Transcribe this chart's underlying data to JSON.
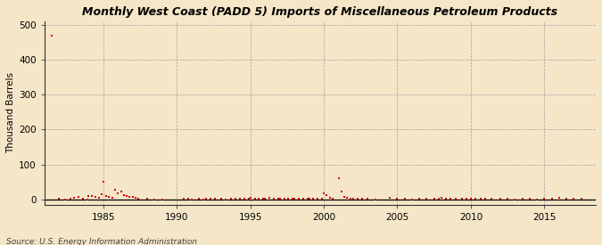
{
  "title": "Monthly West Coast (PADD 5) Imports of Miscellaneous Petroleum Products",
  "ylabel": "Thousand Barrels",
  "source": "Source: U.S. Energy Information Administration",
  "background_color": "#f5e6c8",
  "plot_bg_color": "#f5e6c8",
  "marker_color": "#cc0000",
  "marker_size": 4,
  "xlim": [
    1981.0,
    2018.5
  ],
  "ylim": [
    -15,
    510
  ],
  "yticks": [
    0,
    100,
    200,
    300,
    400,
    500
  ],
  "xticks": [
    1985,
    1990,
    1995,
    2000,
    2005,
    2010,
    2015
  ],
  "data_points": [
    [
      1981.5,
      470
    ],
    [
      1982.0,
      2
    ],
    [
      1982.4,
      1
    ],
    [
      1982.8,
      3
    ],
    [
      1983.0,
      4
    ],
    [
      1983.3,
      7
    ],
    [
      1983.6,
      2
    ],
    [
      1983.9,
      1
    ],
    [
      1984.0,
      9
    ],
    [
      1984.2,
      11
    ],
    [
      1984.5,
      7
    ],
    [
      1984.7,
      5
    ],
    [
      1984.9,
      14
    ],
    [
      1985.0,
      50
    ],
    [
      1985.2,
      9
    ],
    [
      1985.4,
      7
    ],
    [
      1985.6,
      5
    ],
    [
      1985.8,
      28
    ],
    [
      1986.0,
      18
    ],
    [
      1986.2,
      23
    ],
    [
      1986.4,
      13
    ],
    [
      1986.6,
      10
    ],
    [
      1986.8,
      8
    ],
    [
      1987.0,
      7
    ],
    [
      1987.2,
      4
    ],
    [
      1987.4,
      2
    ],
    [
      1988.0,
      2
    ],
    [
      1988.5,
      1
    ],
    [
      1989.0,
      1
    ],
    [
      1990.5,
      2
    ],
    [
      1990.8,
      2
    ],
    [
      1991.0,
      1
    ],
    [
      1991.5,
      2
    ],
    [
      1991.8,
      1
    ],
    [
      1992.0,
      3
    ],
    [
      1992.3,
      2
    ],
    [
      1992.6,
      2
    ],
    [
      1993.0,
      2
    ],
    [
      1993.3,
      1
    ],
    [
      1993.7,
      2
    ],
    [
      1994.0,
      3
    ],
    [
      1994.3,
      2
    ],
    [
      1994.6,
      3
    ],
    [
      1994.9,
      2
    ],
    [
      1995.0,
      4
    ],
    [
      1995.3,
      2
    ],
    [
      1995.6,
      2
    ],
    [
      1995.9,
      3
    ],
    [
      1996.0,
      2
    ],
    [
      1996.3,
      4
    ],
    [
      1996.6,
      2
    ],
    [
      1996.9,
      2
    ],
    [
      1997.0,
      3
    ],
    [
      1997.3,
      2
    ],
    [
      1997.6,
      2
    ],
    [
      1997.9,
      2
    ],
    [
      1998.0,
      2
    ],
    [
      1998.3,
      3
    ],
    [
      1998.6,
      2
    ],
    [
      1998.9,
      2
    ],
    [
      1999.0,
      2
    ],
    [
      1999.3,
      2
    ],
    [
      1999.6,
      3
    ],
    [
      1999.9,
      2
    ],
    [
      2000.0,
      18
    ],
    [
      2000.2,
      13
    ],
    [
      2000.4,
      4
    ],
    [
      2000.6,
      2
    ],
    [
      2001.0,
      62
    ],
    [
      2001.2,
      22
    ],
    [
      2001.4,
      8
    ],
    [
      2001.6,
      4
    ],
    [
      2001.8,
      2
    ],
    [
      2002.0,
      3
    ],
    [
      2002.3,
      2
    ],
    [
      2002.6,
      2
    ],
    [
      2003.0,
      2
    ],
    [
      2003.5,
      1
    ],
    [
      2004.5,
      4
    ],
    [
      2005.0,
      2
    ],
    [
      2005.5,
      2
    ],
    [
      2006.0,
      1
    ],
    [
      2006.5,
      2
    ],
    [
      2007.0,
      3
    ],
    [
      2007.5,
      2
    ],
    [
      2007.8,
      3
    ],
    [
      2008.0,
      4
    ],
    [
      2008.3,
      3
    ],
    [
      2008.6,
      2
    ],
    [
      2009.0,
      2
    ],
    [
      2009.4,
      2
    ],
    [
      2009.7,
      2
    ],
    [
      2010.0,
      3
    ],
    [
      2010.3,
      2
    ],
    [
      2010.7,
      3
    ],
    [
      2011.0,
      2
    ],
    [
      2011.4,
      2
    ],
    [
      2012.0,
      2
    ],
    [
      2012.5,
      2
    ],
    [
      2013.0,
      1
    ],
    [
      2013.5,
      2
    ],
    [
      2014.0,
      2
    ],
    [
      2014.5,
      1
    ],
    [
      2015.0,
      2
    ],
    [
      2015.5,
      2
    ],
    [
      2016.0,
      4
    ],
    [
      2016.5,
      2
    ],
    [
      2017.0,
      2
    ],
    [
      2017.5,
      2
    ]
  ]
}
